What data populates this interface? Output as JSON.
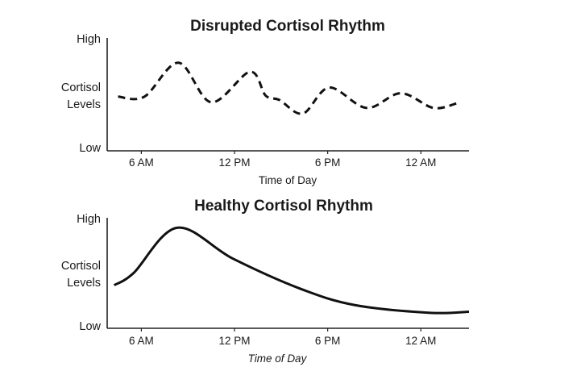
{
  "chart_data": [
    {
      "type": "line",
      "title": "Disrupted Cortisol Rhythm",
      "xlabel": "Time of Day",
      "ylabel": "Cortisol Levels",
      "y_tick_labels": {
        "high": "High",
        "low": "Low"
      },
      "x_ticks": [
        {
          "hour": 6,
          "label": "6 AM"
        },
        {
          "hour": 12,
          "label": "12 PM"
        },
        {
          "hour": 18,
          "label": "6 PM"
        },
        {
          "hour": 24,
          "label": "12 AM"
        }
      ],
      "xlim": [
        3.8,
        27.1
      ],
      "ylim": [
        0,
        10
      ],
      "line_style": "dashed",
      "color": "#111111",
      "x": [
        4.5,
        6.2,
        8.4,
        10.5,
        13.0,
        14.0,
        14.9,
        16.4,
        18.1,
        20.5,
        22.7,
        24.8,
        26.3
      ],
      "y": [
        4.8,
        4.8,
        7.8,
        4.3,
        7.0,
        4.9,
        4.5,
        3.3,
        5.6,
        3.8,
        5.1,
        3.8,
        4.2
      ],
      "grid": false
    },
    {
      "type": "line",
      "title": "Healthy Cortisol Rhythm",
      "xlabel": "Time of Day",
      "ylabel": "Cortisol Levels",
      "y_tick_labels": {
        "high": "High",
        "low": "Low"
      },
      "x_ticks": [
        {
          "hour": 6,
          "label": "6 AM"
        },
        {
          "hour": 12,
          "label": "12 PM"
        },
        {
          "hour": 18,
          "label": "6 PM"
        },
        {
          "hour": 24,
          "label": "12 AM"
        }
      ],
      "xlim": [
        3.8,
        27.1
      ],
      "ylim": [
        0,
        10
      ],
      "line_style": "solid",
      "color": "#111111",
      "x": [
        4.25,
        5.5,
        8.3,
        11.9,
        16.2,
        19.75,
        24.6,
        27.1
      ],
      "y": [
        3.9,
        5.0,
        9.1,
        6.3,
        3.6,
        2.1,
        1.4,
        1.5
      ],
      "grid": false
    }
  ]
}
